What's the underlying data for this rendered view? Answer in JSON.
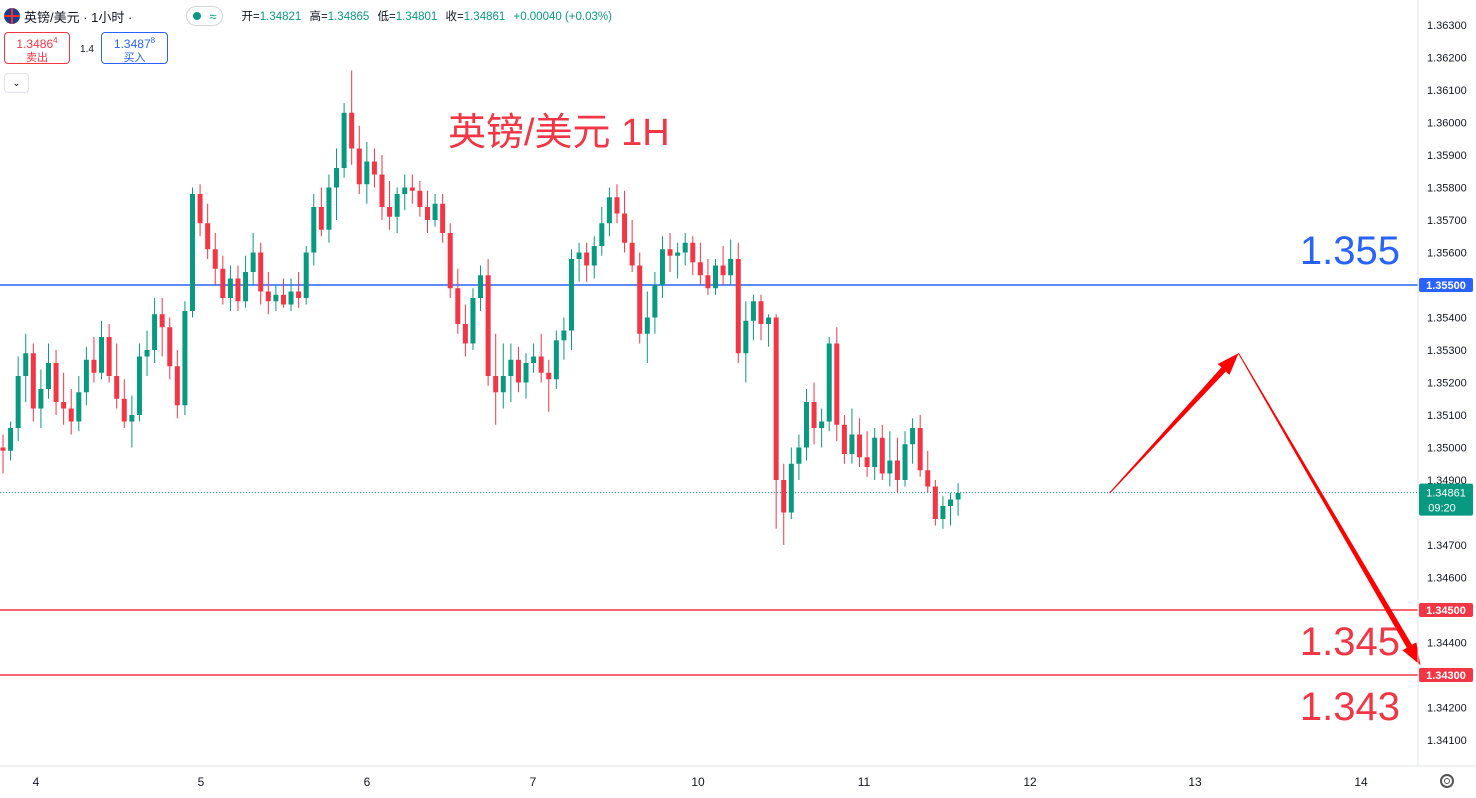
{
  "header": {
    "symbol": "英镑/美元 · 1小时 ·",
    "ohlc": {
      "open_label": "开=",
      "open": "1.34821",
      "high_label": "高=",
      "high": "1.34865",
      "low_label": "低=",
      "low": "1.34801",
      "close_label": "收=",
      "close": "1.34861",
      "change": "+0.00040 (+0.03%)"
    }
  },
  "trade": {
    "sell_price": "1.3486",
    "sell_price_sup": "4",
    "sell_label": "卖出",
    "spread": "1.4",
    "buy_price": "1.3487",
    "buy_price_sup": "8",
    "buy_label": "买入"
  },
  "colors": {
    "up": "#089981",
    "down": "#f23645",
    "blue_line": "#2962ff",
    "red_line": "#f23645",
    "arrow": "#ff0000"
  },
  "icons": [
    "flag-icon",
    "status-dot-icon",
    "wave-icon",
    "chevron-down-icon",
    "gear-icon"
  ],
  "chart_data": {
    "type": "candlestick",
    "title": "英镑/美元 1H",
    "price_axis": {
      "min": 1.34,
      "max": 1.364,
      "ticks": [
        "1.36300",
        "1.36200",
        "1.36100",
        "1.36000",
        "1.35900",
        "1.35800",
        "1.35700",
        "1.35600",
        "1.35400",
        "1.35300",
        "1.35200",
        "1.35100",
        "1.35000",
        "1.34900",
        "1.34700",
        "1.34600",
        "1.34400",
        "1.34200",
        "1.34100"
      ]
    },
    "time_axis": {
      "ticks": [
        "4",
        "5",
        "6",
        "7",
        "10",
        "11",
        "12",
        "13",
        "14"
      ]
    },
    "horizontal_lines": [
      {
        "price": 1.355,
        "axis_label": "1.35500",
        "big_label": "1.355",
        "color": "#2962ff"
      },
      {
        "price": 1.345,
        "axis_label": "1.34500",
        "big_label": "1.345",
        "color": "#f23645"
      },
      {
        "price": 1.343,
        "axis_label": "1.34300",
        "big_label": "1.343",
        "color": "#f23645"
      }
    ],
    "current_price": {
      "price": 1.34861,
      "label": "1.34861",
      "countdown": "09:20"
    },
    "projection_arrow": [
      {
        "bar": 146,
        "price": 1.3486
      },
      {
        "bar": 163,
        "price": 1.3529
      },
      {
        "bar": 187,
        "price": 1.3433
      }
    ],
    "candles": [
      [
        1.35,
        1.3504,
        1.3492,
        1.3499
      ],
      [
        1.3499,
        1.3508,
        1.3496,
        1.3506
      ],
      [
        1.3506,
        1.3528,
        1.3502,
        1.3522
      ],
      [
        1.3522,
        1.3535,
        1.3514,
        1.3529
      ],
      [
        1.3529,
        1.3532,
        1.3508,
        1.3512
      ],
      [
        1.3512,
        1.3524,
        1.3506,
        1.3518
      ],
      [
        1.3518,
        1.3532,
        1.3515,
        1.3526
      ],
      [
        1.3526,
        1.353,
        1.351,
        1.3514
      ],
      [
        1.3514,
        1.3523,
        1.3507,
        1.3512
      ],
      [
        1.3512,
        1.3518,
        1.3504,
        1.3508
      ],
      [
        1.3508,
        1.3522,
        1.3505,
        1.3517
      ],
      [
        1.3517,
        1.3531,
        1.3513,
        1.3527
      ],
      [
        1.3527,
        1.3534,
        1.352,
        1.3523
      ],
      [
        1.3523,
        1.3539,
        1.3521,
        1.3534
      ],
      [
        1.3534,
        1.3538,
        1.352,
        1.3522
      ],
      [
        1.3522,
        1.3532,
        1.3512,
        1.3515
      ],
      [
        1.3515,
        1.3521,
        1.3506,
        1.3508
      ],
      [
        1.3508,
        1.3516,
        1.35,
        1.351
      ],
      [
        1.351,
        1.3532,
        1.3508,
        1.3528
      ],
      [
        1.3528,
        1.3536,
        1.3522,
        1.353
      ],
      [
        1.353,
        1.3546,
        1.3526,
        1.3541
      ],
      [
        1.3541,
        1.3546,
        1.3528,
        1.3537
      ],
      [
        1.3537,
        1.354,
        1.3521,
        1.3525
      ],
      [
        1.3525,
        1.353,
        1.3509,
        1.3513
      ],
      [
        1.3513,
        1.3545,
        1.351,
        1.3542
      ],
      [
        1.3542,
        1.358,
        1.354,
        1.3578
      ],
      [
        1.3578,
        1.3581,
        1.3565,
        1.3569
      ],
      [
        1.3569,
        1.3575,
        1.3558,
        1.3561
      ],
      [
        1.3561,
        1.3566,
        1.355,
        1.3555
      ],
      [
        1.3555,
        1.3559,
        1.3544,
        1.3546
      ],
      [
        1.3546,
        1.3556,
        1.3542,
        1.3552
      ],
      [
        1.3552,
        1.3556,
        1.3542,
        1.3545
      ],
      [
        1.3545,
        1.3559,
        1.3543,
        1.3554
      ],
      [
        1.3554,
        1.3566,
        1.355,
        1.356
      ],
      [
        1.356,
        1.3563,
        1.3544,
        1.3548
      ],
      [
        1.3548,
        1.3554,
        1.3541,
        1.3545
      ],
      [
        1.3545,
        1.355,
        1.3542,
        1.3547
      ],
      [
        1.3547,
        1.3552,
        1.3543,
        1.3544
      ],
      [
        1.3544,
        1.3552,
        1.3542,
        1.3548
      ],
      [
        1.3548,
        1.3554,
        1.3543,
        1.3546
      ],
      [
        1.3546,
        1.3562,
        1.3544,
        1.356
      ],
      [
        1.356,
        1.3578,
        1.3556,
        1.3574
      ],
      [
        1.3574,
        1.358,
        1.3565,
        1.3567
      ],
      [
        1.3567,
        1.3584,
        1.3563,
        1.358
      ],
      [
        1.358,
        1.3592,
        1.357,
        1.3586
      ],
      [
        1.3586,
        1.3606,
        1.3583,
        1.3603
      ],
      [
        1.3603,
        1.3616,
        1.3587,
        1.3592
      ],
      [
        1.3592,
        1.3599,
        1.3578,
        1.3581
      ],
      [
        1.3581,
        1.3594,
        1.3575,
        1.3588
      ],
      [
        1.3588,
        1.3592,
        1.358,
        1.3584
      ],
      [
        1.3584,
        1.359,
        1.357,
        1.3574
      ],
      [
        1.3574,
        1.3582,
        1.3567,
        1.3571
      ],
      [
        1.3571,
        1.358,
        1.3566,
        1.3578
      ],
      [
        1.3578,
        1.3584,
        1.3573,
        1.358
      ],
      [
        1.358,
        1.3584,
        1.3575,
        1.3579
      ],
      [
        1.3579,
        1.3582,
        1.3571,
        1.3574
      ],
      [
        1.3574,
        1.3579,
        1.3566,
        1.357
      ],
      [
        1.357,
        1.3578,
        1.3568,
        1.3575
      ],
      [
        1.3575,
        1.3578,
        1.3563,
        1.3566
      ],
      [
        1.3566,
        1.3569,
        1.3546,
        1.3549
      ],
      [
        1.3549,
        1.3555,
        1.3535,
        1.3538
      ],
      [
        1.3538,
        1.3544,
        1.3528,
        1.3532
      ],
      [
        1.3532,
        1.3549,
        1.353,
        1.3546
      ],
      [
        1.3546,
        1.3556,
        1.3542,
        1.3553
      ],
      [
        1.3553,
        1.3558,
        1.3519,
        1.3522
      ],
      [
        1.3522,
        1.3535,
        1.3507,
        1.3517
      ],
      [
        1.3517,
        1.3532,
        1.3512,
        1.3522
      ],
      [
        1.3522,
        1.3532,
        1.3514,
        1.3527
      ],
      [
        1.3527,
        1.3531,
        1.3517,
        1.352
      ],
      [
        1.352,
        1.3529,
        1.3515,
        1.3526
      ],
      [
        1.3526,
        1.3532,
        1.3523,
        1.3528
      ],
      [
        1.3528,
        1.3535,
        1.352,
        1.3523
      ],
      [
        1.3523,
        1.3527,
        1.3511,
        1.3521
      ],
      [
        1.3521,
        1.3536,
        1.3518,
        1.3533
      ],
      [
        1.3533,
        1.354,
        1.3527,
        1.3536
      ],
      [
        1.3536,
        1.3561,
        1.353,
        1.3558
      ],
      [
        1.3558,
        1.3563,
        1.3551,
        1.356
      ],
      [
        1.356,
        1.3563,
        1.3551,
        1.3556
      ],
      [
        1.3556,
        1.3565,
        1.3552,
        1.3562
      ],
      [
        1.3562,
        1.3574,
        1.3559,
        1.3569
      ],
      [
        1.3569,
        1.358,
        1.3565,
        1.3577
      ],
      [
        1.3577,
        1.3581,
        1.3569,
        1.3572
      ],
      [
        1.3572,
        1.3579,
        1.356,
        1.3563
      ],
      [
        1.3563,
        1.357,
        1.3554,
        1.3556
      ],
      [
        1.3556,
        1.356,
        1.3532,
        1.3535
      ],
      [
        1.3535,
        1.3548,
        1.3526,
        1.354
      ],
      [
        1.354,
        1.3554,
        1.3535,
        1.355
      ],
      [
        1.355,
        1.3565,
        1.3546,
        1.3561
      ],
      [
        1.3561,
        1.3566,
        1.3554,
        1.3559
      ],
      [
        1.3559,
        1.3563,
        1.3552,
        1.356
      ],
      [
        1.356,
        1.3566,
        1.3556,
        1.3563
      ],
      [
        1.3563,
        1.3565,
        1.3553,
        1.3557
      ],
      [
        1.3557,
        1.3563,
        1.355,
        1.3553
      ],
      [
        1.3553,
        1.3558,
        1.3547,
        1.3549
      ],
      [
        1.3549,
        1.3558,
        1.3547,
        1.3556
      ],
      [
        1.3556,
        1.3562,
        1.355,
        1.3553
      ],
      [
        1.3553,
        1.3564,
        1.355,
        1.3558
      ],
      [
        1.3558,
        1.3563,
        1.3526,
        1.3529
      ],
      [
        1.3529,
        1.3545,
        1.352,
        1.3539
      ],
      [
        1.3539,
        1.3547,
        1.3533,
        1.3545
      ],
      [
        1.3545,
        1.3547,
        1.3533,
        1.3538
      ],
      [
        1.3538,
        1.3541,
        1.3531,
        1.354
      ],
      [
        1.354,
        1.3541,
        1.3475,
        1.349
      ],
      [
        1.349,
        1.3495,
        1.347,
        1.348
      ],
      [
        1.348,
        1.35,
        1.3478,
        1.3495
      ],
      [
        1.3495,
        1.3504,
        1.349,
        1.35
      ],
      [
        1.35,
        1.3518,
        1.3496,
        1.3514
      ],
      [
        1.3514,
        1.352,
        1.3501,
        1.3506
      ],
      [
        1.3506,
        1.3512,
        1.35,
        1.3508
      ],
      [
        1.3508,
        1.3534,
        1.3505,
        1.3532
      ],
      [
        1.3532,
        1.3537,
        1.3502,
        1.3507
      ],
      [
        1.3507,
        1.351,
        1.3495,
        1.3498
      ],
      [
        1.3498,
        1.3512,
        1.3495,
        1.3504
      ],
      [
        1.3504,
        1.3509,
        1.3494,
        1.3497
      ],
      [
        1.3497,
        1.3505,
        1.3491,
        1.3494
      ],
      [
        1.3494,
        1.3506,
        1.349,
        1.3503
      ],
      [
        1.3503,
        1.3507,
        1.349,
        1.3492
      ],
      [
        1.3492,
        1.3505,
        1.3488,
        1.3496
      ],
      [
        1.3496,
        1.3503,
        1.3486,
        1.349
      ],
      [
        1.349,
        1.3505,
        1.3488,
        1.3501
      ],
      [
        1.3501,
        1.3509,
        1.3495,
        1.3506
      ],
      [
        1.3506,
        1.351,
        1.3491,
        1.3493
      ],
      [
        1.3493,
        1.3499,
        1.3486,
        1.3488
      ],
      [
        1.3488,
        1.349,
        1.3476,
        1.3478
      ],
      [
        1.3478,
        1.3485,
        1.3475,
        1.3482
      ],
      [
        1.3482,
        1.3486,
        1.3476,
        1.3484
      ],
      [
        1.3484,
        1.3489,
        1.3479,
        1.3486
      ]
    ]
  }
}
